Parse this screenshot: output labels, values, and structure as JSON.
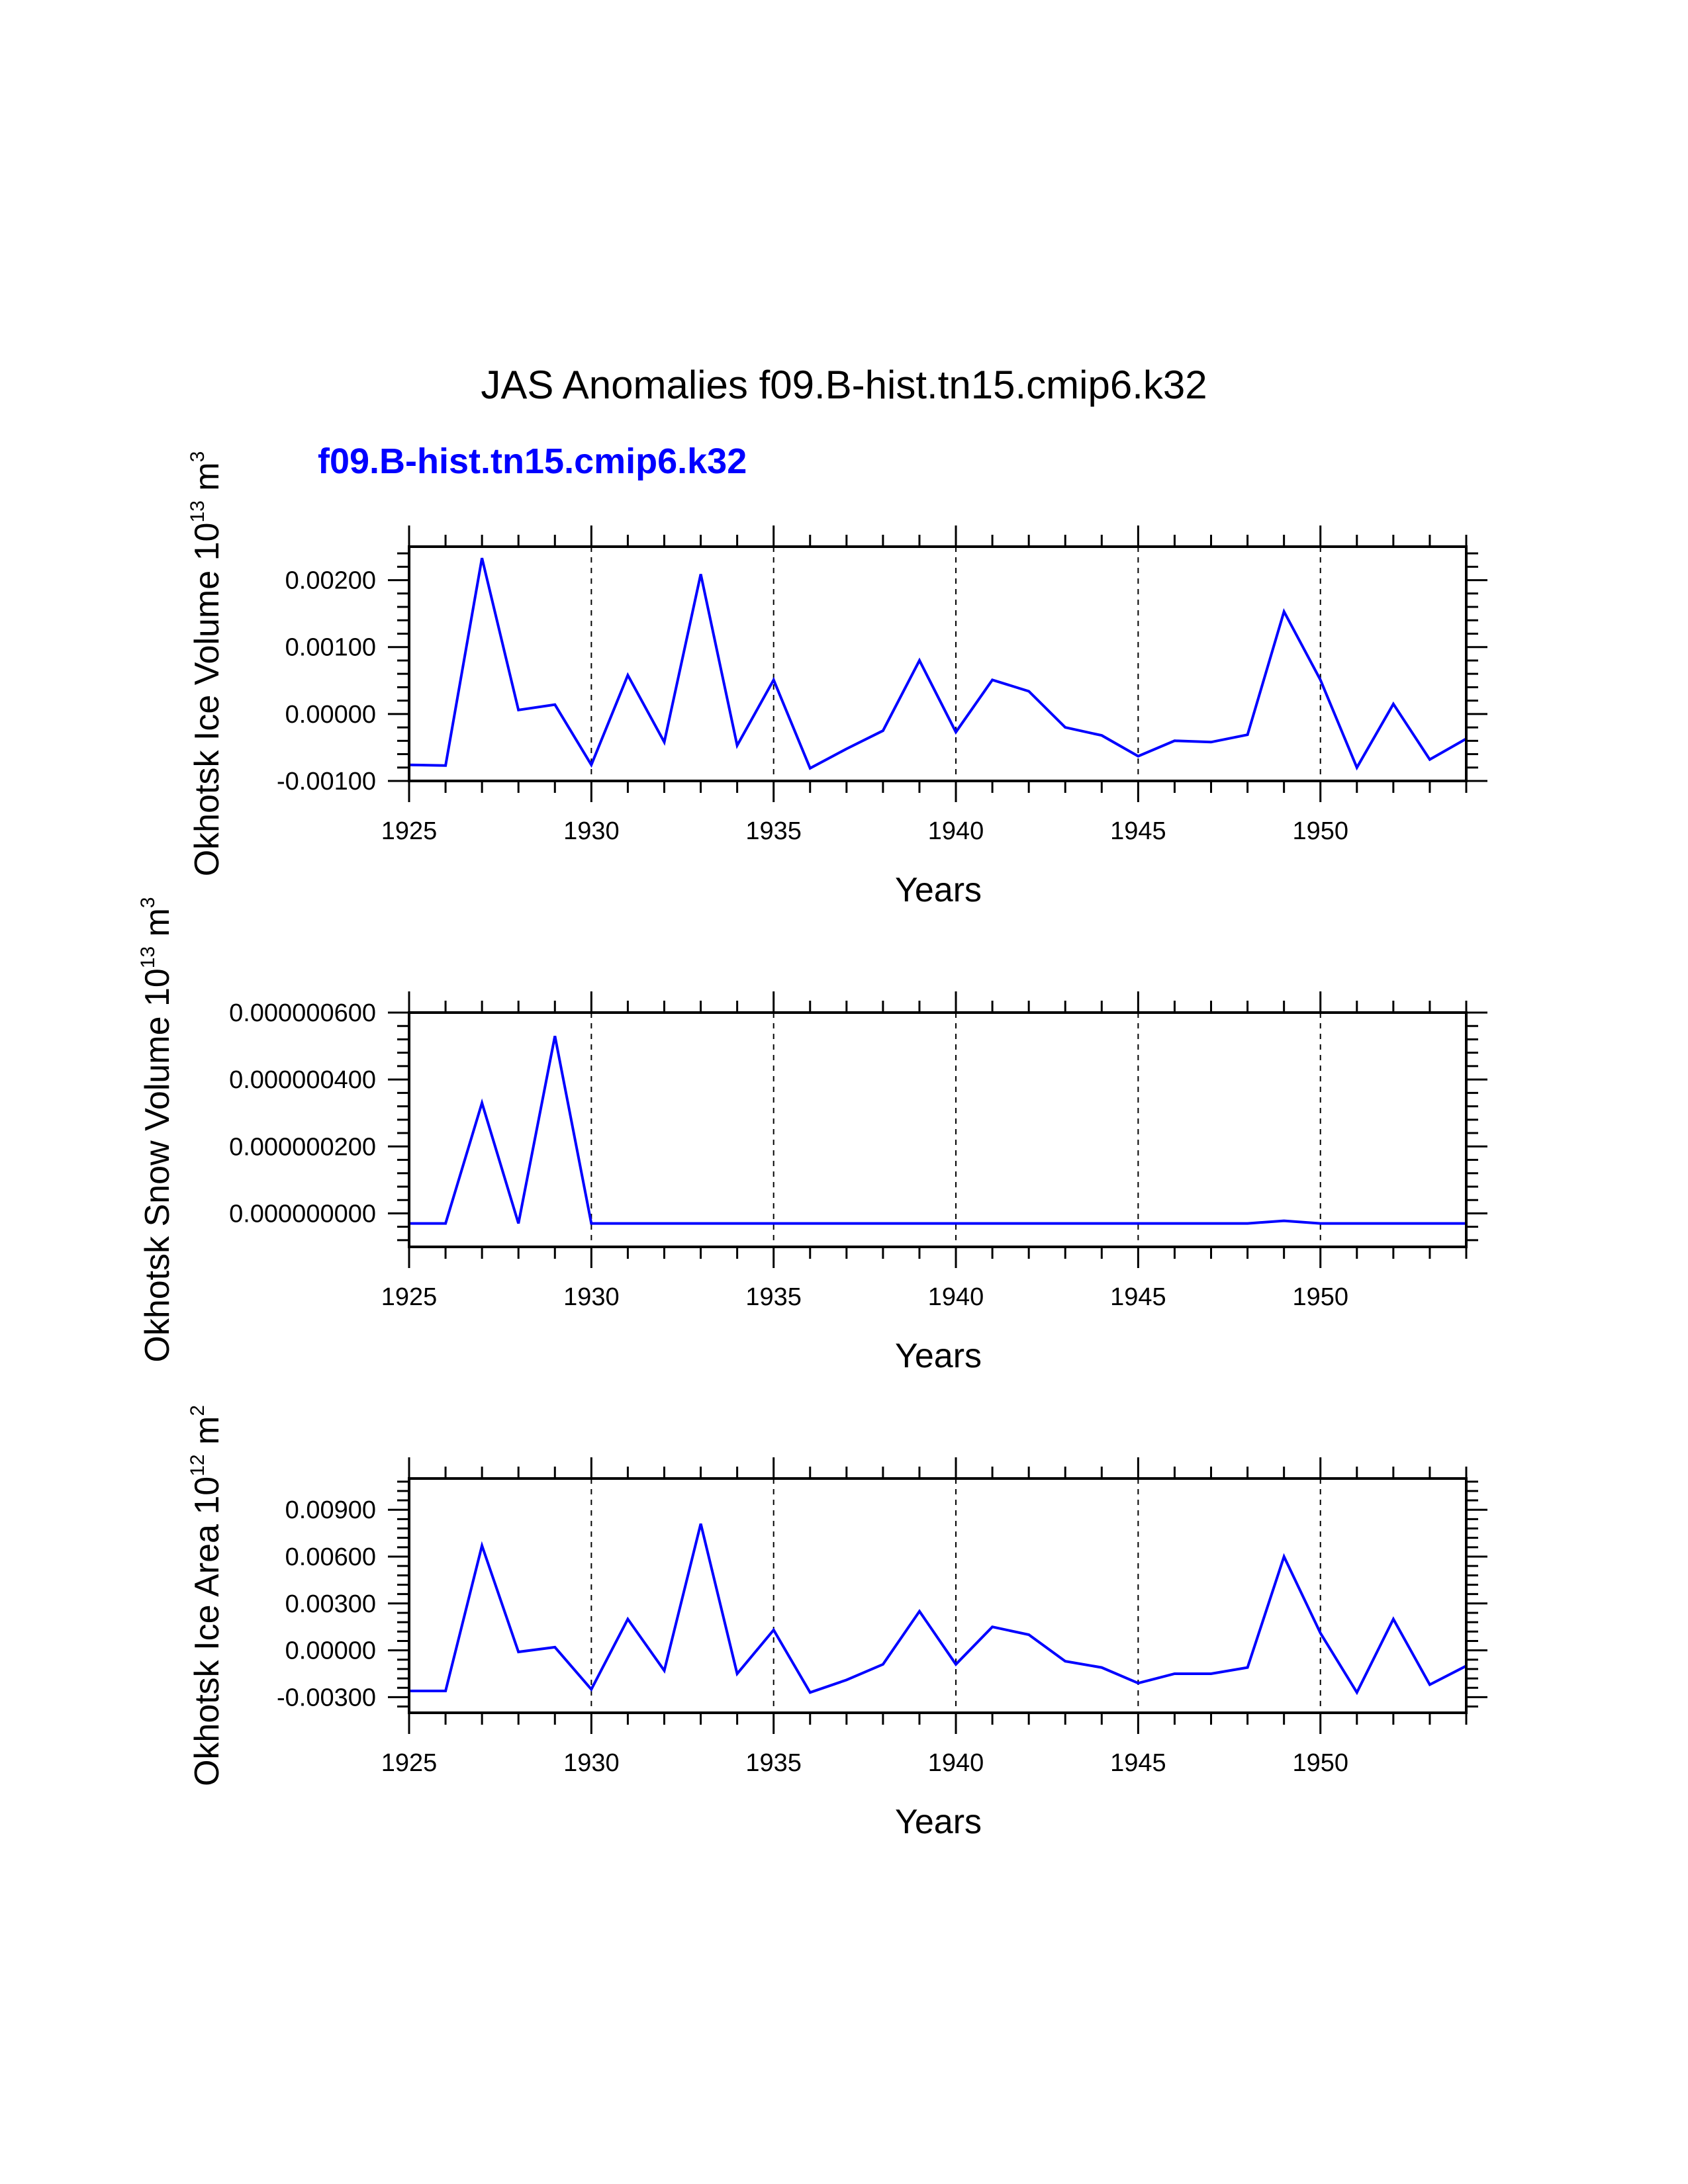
{
  "title": "JAS Anomalies f09.B-hist.tn15.cmip6.k32",
  "subtitle": "f09.B-hist.tn15.cmip6.k32",
  "colors": {
    "series": "#0000ff",
    "axis": "#000000",
    "grid": "#000000",
    "background": "#ffffff"
  },
  "chart_data": [
    {
      "type": "line",
      "name": "ice-volume",
      "ylabel": {
        "text": "Okhotsk Ice Volume 10",
        "exp": "13",
        "unit": " m",
        "unit_exp": "3"
      },
      "xlabel": "Years",
      "xlim": [
        1925,
        1954
      ],
      "ylim": [
        -0.001,
        0.0025
      ],
      "yticks": [
        -0.001,
        0.0,
        0.001,
        0.002
      ],
      "ytick_labels": [
        "-0.00100",
        "0.00000",
        "0.00100",
        "0.00200"
      ],
      "xticks": [
        1925,
        1930,
        1935,
        1940,
        1945,
        1950
      ],
      "xtick_labels": [
        "1925",
        "1930",
        "1935",
        "1940",
        "1945",
        "1950"
      ],
      "grid_x": [
        1930,
        1935,
        1940,
        1945,
        1950
      ],
      "series": [
        {
          "name": "f09.B-hist.tn15.cmip6.k32",
          "x": [
            1925,
            1926,
            1927,
            1928,
            1929,
            1930,
            1931,
            1932,
            1933,
            1934,
            1935,
            1936,
            1937,
            1938,
            1939,
            1940,
            1941,
            1942,
            1943,
            1944,
            1945,
            1946,
            1947,
            1948,
            1949,
            1950,
            1951,
            1952,
            1953,
            1954
          ],
          "values": [
            -0.00076,
            -0.00077,
            0.00233,
            6e-05,
            0.00014,
            -0.00076,
            0.00058,
            -0.00042,
            0.00209,
            -0.00047,
            0.00051,
            -0.00081,
            -0.00052,
            -0.00025,
            0.0008,
            -0.00027,
            0.00051,
            0.00034,
            -0.0002,
            -0.00032,
            -0.00063,
            -0.0004,
            -0.00042,
            -0.00031,
            0.00153,
            0.00051,
            -0.0008,
            0.00015,
            -0.00068,
            -0.00037
          ]
        }
      ]
    },
    {
      "type": "line",
      "name": "snow-volume",
      "ylabel": {
        "text": "Okhotsk Snow Volume 10",
        "exp": "13",
        "unit": " m",
        "unit_exp": "3"
      },
      "xlabel": "Years",
      "xlim": [
        1925,
        1954
      ],
      "ylim": [
        -1e-07,
        6e-07
      ],
      "yticks": [
        0.0,
        2e-07,
        4e-07,
        6e-07
      ],
      "ytick_labels": [
        "0.000000000",
        "0.000000200",
        "0.000000400",
        "0.000000600"
      ],
      "xticks": [
        1925,
        1930,
        1935,
        1940,
        1945,
        1950
      ],
      "xtick_labels": [
        "1925",
        "1930",
        "1935",
        "1940",
        "1945",
        "1950"
      ],
      "grid_x": [
        1930,
        1935,
        1940,
        1945,
        1950
      ],
      "series": [
        {
          "name": "f09.B-hist.tn15.cmip6.k32",
          "x": [
            1925,
            1926,
            1927,
            1928,
            1929,
            1930,
            1931,
            1932,
            1933,
            1934,
            1935,
            1936,
            1937,
            1938,
            1939,
            1940,
            1941,
            1942,
            1943,
            1944,
            1945,
            1946,
            1947,
            1948,
            1949,
            1950,
            1951,
            1952,
            1953,
            1954
          ],
          "values": [
            -3e-08,
            -3e-08,
            3.3e-07,
            -3e-08,
            5.3e-07,
            -3e-08,
            -3e-08,
            -3e-08,
            -3e-08,
            -3e-08,
            -3e-08,
            -3e-08,
            -3e-08,
            -3e-08,
            -3e-08,
            -3e-08,
            -3e-08,
            -3e-08,
            -3e-08,
            -3e-08,
            -3e-08,
            -3e-08,
            -3e-08,
            -3e-08,
            -2.2e-08,
            -3e-08,
            -3e-08,
            -3e-08,
            -3e-08,
            -3e-08
          ]
        }
      ]
    },
    {
      "type": "line",
      "name": "ice-area",
      "ylabel": {
        "text": "Okhotsk Ice Area 10",
        "exp": "12",
        "unit": " m",
        "unit_exp": "2"
      },
      "xlabel": "Years",
      "xlim": [
        1925,
        1954
      ],
      "ylim": [
        -0.004,
        0.011
      ],
      "yticks": [
        -0.003,
        0.0,
        0.003,
        0.006,
        0.009
      ],
      "ytick_labels": [
        "-0.00300",
        "0.00000",
        "0.00300",
        "0.00600",
        "0.00900"
      ],
      "xticks": [
        1925,
        1930,
        1935,
        1940,
        1945,
        1950
      ],
      "xtick_labels": [
        "1925",
        "1930",
        "1935",
        "1940",
        "1945",
        "1950"
      ],
      "grid_x": [
        1930,
        1935,
        1940,
        1945,
        1950
      ],
      "series": [
        {
          "name": "f09.B-hist.tn15.cmip6.k32",
          "x": [
            1925,
            1926,
            1927,
            1928,
            1929,
            1930,
            1931,
            1932,
            1933,
            1934,
            1935,
            1936,
            1937,
            1938,
            1939,
            1940,
            1941,
            1942,
            1943,
            1944,
            1945,
            1946,
            1947,
            1948,
            1949,
            1950,
            1951,
            1952,
            1953,
            1954
          ],
          "values": [
            -0.0026,
            -0.0026,
            0.0067,
            -0.0001,
            0.0002,
            -0.0025,
            0.002,
            -0.0013,
            0.0081,
            -0.0015,
            0.0013,
            -0.0027,
            -0.0019,
            -0.0009,
            0.0025,
            -0.0009,
            0.0015,
            0.001,
            -0.0007,
            -0.0011,
            -0.0021,
            -0.0015,
            -0.0015,
            -0.0011,
            0.006,
            0.0011,
            -0.0027,
            0.002,
            -0.0022,
            -0.001
          ]
        }
      ]
    }
  ]
}
